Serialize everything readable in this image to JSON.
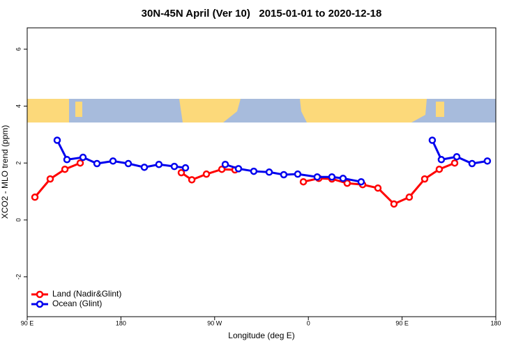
{
  "chart_data": {
    "type": "line",
    "title": "30N-45N April (Ver 10)   2015-01-01 to 2020-12-18",
    "x_label": "Longitude (deg E)",
    "y_label": "XCO2 - MLO trend (ppm)",
    "xlim": [
      90,
      540
    ],
    "ylim": [
      -3.4,
      6.75
    ],
    "xticks": [
      {
        "value": 90,
        "label": "90 E"
      },
      {
        "value": 180,
        "label": "180"
      },
      {
        "value": 270,
        "label": "90 W"
      },
      {
        "value": 360,
        "label": "0"
      },
      {
        "value": 450,
        "label": "90 E"
      },
      {
        "value": 540,
        "label": "180"
      }
    ],
    "yticks": [
      -2,
      0,
      2,
      4,
      6
    ],
    "legend": "bottom-left",
    "series": [
      {
        "name": "Land (Nadir&Glint)",
        "color": "#ff0000",
        "x": [
          97.4,
          112.1,
          126.2,
          140.9,
          null,
          238.0,
          248.1,
          262.1,
          276.9,
          289.5,
          null,
          355.2,
          370.0,
          382.6,
          397.3,
          412.1,
          426.8,
          442.2,
          456.9,
          471.7,
          485.7,
          500.5
        ],
        "values": [
          0.8,
          1.44,
          1.78,
          2.0,
          null,
          1.66,
          1.41,
          1.61,
          1.78,
          1.76,
          null,
          1.34,
          1.46,
          1.44,
          1.29,
          1.24,
          1.12,
          0.56,
          0.8,
          1.44,
          1.78,
          2.0
        ]
      },
      {
        "name": "Ocean (Glint)",
        "color": "#0000ee",
        "x": [
          118.8,
          128.2,
          143.6,
          157.0,
          172.4,
          187.1,
          202.5,
          216.5,
          231.3,
          242.0,
          null,
          280.2,
          292.9,
          307.6,
          322.4,
          336.4,
          349.8,
          368.5,
          382.6,
          393.3,
          410.7,
          null,
          479.0,
          487.7,
          502.5,
          517.2,
          531.9
        ],
        "values": [
          2.8,
          2.12,
          2.2,
          1.98,
          2.07,
          1.98,
          1.85,
          1.95,
          1.88,
          1.83,
          null,
          1.95,
          1.8,
          1.71,
          1.68,
          1.59,
          1.61,
          1.51,
          1.51,
          1.46,
          1.34,
          null,
          2.8,
          2.12,
          2.22,
          1.98,
          2.07
        ]
      }
    ]
  }
}
